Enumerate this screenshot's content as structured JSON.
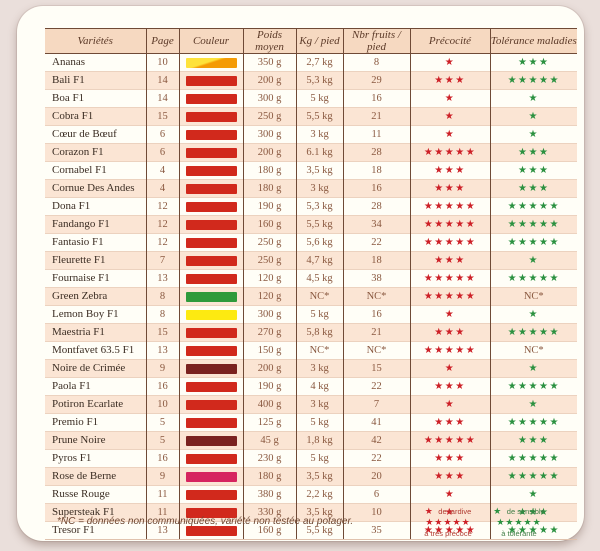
{
  "page": {
    "background": "#eadfdb",
    "card_background": "#fffef7"
  },
  "colors": {
    "header_bg": "#f6d9c1",
    "row_alt_bg": "#fbe5d4",
    "grid_border": "#6f4a36",
    "red_star": "#cd2027",
    "green_star": "#2b9140"
  },
  "table": {
    "headers": [
      "Variétés",
      "Page",
      "Couleur",
      "Poids moyen",
      "Kg / pied",
      "Nbr fruits / pied",
      "Précocité",
      "Tolérance maladies"
    ],
    "rows": [
      {
        "name": "Ananas",
        "page": "10",
        "swatch": "linear-gradient(162deg,#fee23a 42%,#f49b05 50%)",
        "weight": "350 g",
        "kg": "2,7 kg",
        "fruits": "8",
        "precocite": 1,
        "tolerance": 3
      },
      {
        "name": "Bali F1",
        "page": "14",
        "swatch": "#d1291c",
        "weight": "200 g",
        "kg": "5,3 kg",
        "fruits": "29",
        "precocite": 3,
        "tolerance": 5
      },
      {
        "name": "Boa F1",
        "page": "14",
        "swatch": "#d1291c",
        "weight": "300 g",
        "kg": "5 kg",
        "fruits": "16",
        "precocite": 1,
        "tolerance": 1
      },
      {
        "name": "Cobra F1",
        "page": "15",
        "swatch": "#d1291c",
        "weight": "250 g",
        "kg": "5,5 kg",
        "fruits": "21",
        "precocite": 1,
        "tolerance": 1
      },
      {
        "name": "Cœur de Bœuf",
        "page": "6",
        "swatch": "#d1291c",
        "weight": "300 g",
        "kg": "3 kg",
        "fruits": "11",
        "precocite": 1,
        "tolerance": 1
      },
      {
        "name": "Corazon F1",
        "page": "6",
        "swatch": "#d1291c",
        "weight": "200 g",
        "kg": "6.1 kg",
        "fruits": "28",
        "precocite": 5,
        "tolerance": 3
      },
      {
        "name": "Cornabel F1",
        "page": "4",
        "swatch": "#d1291c",
        "weight": "180 g",
        "kg": "3,5 kg",
        "fruits": "18",
        "precocite": 3,
        "tolerance": 3
      },
      {
        "name": "Cornue Des Andes",
        "page": "4",
        "swatch": "#d1291c",
        "weight": "180 g",
        "kg": "3 kg",
        "fruits": "16",
        "precocite": 3,
        "tolerance": 3
      },
      {
        "name": "Dona F1",
        "page": "12",
        "swatch": "#d1291c",
        "weight": "190 g",
        "kg": "5,3 kg",
        "fruits": "28",
        "precocite": 5,
        "tolerance": 5
      },
      {
        "name": "Fandango F1",
        "page": "12",
        "swatch": "#d1291c",
        "weight": "160 g",
        "kg": "5,5 kg",
        "fruits": "34",
        "precocite": 5,
        "tolerance": 5
      },
      {
        "name": "Fantasio F1",
        "page": "12",
        "swatch": "#d1291c",
        "weight": "250 g",
        "kg": "5,6 kg",
        "fruits": "22",
        "precocite": 5,
        "tolerance": 5
      },
      {
        "name": "Fleurette F1",
        "page": "7",
        "swatch": "#d1291c",
        "weight": "250 g",
        "kg": "4,7 kg",
        "fruits": "18",
        "precocite": 3,
        "tolerance": 1
      },
      {
        "name": "Fournaise F1",
        "page": "13",
        "swatch": "#d1291c",
        "weight": "120 g",
        "kg": "4,5 kg",
        "fruits": "38",
        "precocite": 5,
        "tolerance": 5
      },
      {
        "name": "Green Zebra",
        "page": "8",
        "swatch": "#2f9a3b",
        "weight": "120 g",
        "kg": "NC*",
        "fruits": "NC*",
        "precocite": 5,
        "tolerance": "NC*"
      },
      {
        "name": "Lemon Boy F1",
        "page": "8",
        "swatch": "#fdea11",
        "weight": "300 g",
        "kg": "5 kg",
        "fruits": "16",
        "precocite": 1,
        "tolerance": 1
      },
      {
        "name": "Maestria F1",
        "page": "15",
        "swatch": "#d1291c",
        "weight": "270 g",
        "kg": "5,8 kg",
        "fruits": "21",
        "precocite": 3,
        "tolerance": 5
      },
      {
        "name": "Montfavet 63.5 F1",
        "page": "13",
        "swatch": "#d1291c",
        "weight": "150 g",
        "kg": "NC*",
        "fruits": "NC*",
        "precocite": 5,
        "tolerance": "NC*"
      },
      {
        "name": "Noire de Crimée",
        "page": "9",
        "swatch": "#7a2220",
        "weight": "200 g",
        "kg": "3 kg",
        "fruits": "15",
        "precocite": 1,
        "tolerance": 1
      },
      {
        "name": "Paola F1",
        "page": "16",
        "swatch": "#d1291c",
        "weight": "190 g",
        "kg": "4 kg",
        "fruits": "22",
        "precocite": 3,
        "tolerance": 5
      },
      {
        "name": "Potiron Ecarlate",
        "page": "10",
        "swatch": "#d1291c",
        "weight": "400 g",
        "kg": "3 kg",
        "fruits": "7",
        "precocite": 1,
        "tolerance": 1
      },
      {
        "name": "Premio F1",
        "page": "5",
        "swatch": "#d1291c",
        "weight": "125 g",
        "kg": "5 kg",
        "fruits": "41",
        "precocite": 3,
        "tolerance": 5
      },
      {
        "name": "Prune Noire",
        "page": "5",
        "swatch": "#7a2220",
        "weight": "45 g",
        "kg": "1,8 kg",
        "fruits": "42",
        "precocite": 5,
        "tolerance": 3
      },
      {
        "name": "Pyros F1",
        "page": "16",
        "swatch": "#d1291c",
        "weight": "230 g",
        "kg": "5 kg",
        "fruits": "22",
        "precocite": 3,
        "tolerance": 5
      },
      {
        "name": "Rose de Berne",
        "page": "9",
        "swatch": "#d6245f",
        "weight": "180 g",
        "kg": "3,5 kg",
        "fruits": "20",
        "precocite": 3,
        "tolerance": 5
      },
      {
        "name": "Russe Rouge",
        "page": "11",
        "swatch": "#d1291c",
        "weight": "380 g",
        "kg": "2,2 kg",
        "fruits": "6",
        "precocite": 1,
        "tolerance": 1
      },
      {
        "name": "Supersteak F1",
        "page": "11",
        "swatch": "#d1291c",
        "weight": "330 g",
        "kg": "3,5 kg",
        "fruits": "10",
        "precocite": 1,
        "tolerance": 3
      },
      {
        "name": "Tresor F1",
        "page": "13",
        "swatch": "#d1291c",
        "weight": "160 g",
        "kg": "5,5 kg",
        "fruits": "35",
        "precocite": 5,
        "tolerance": 5
      }
    ]
  },
  "legend": {
    "red": {
      "one_star": "★",
      "one_label": "de tardive",
      "five_stars": "★★★★★",
      "five_label": "à très précoce"
    },
    "green": {
      "one_star": "★",
      "one_label": "de sensible",
      "five_stars": "★★★★★",
      "five_label": "à tolérante"
    }
  },
  "footnote": "*NC = données non communiquées, variété non testée au potager."
}
